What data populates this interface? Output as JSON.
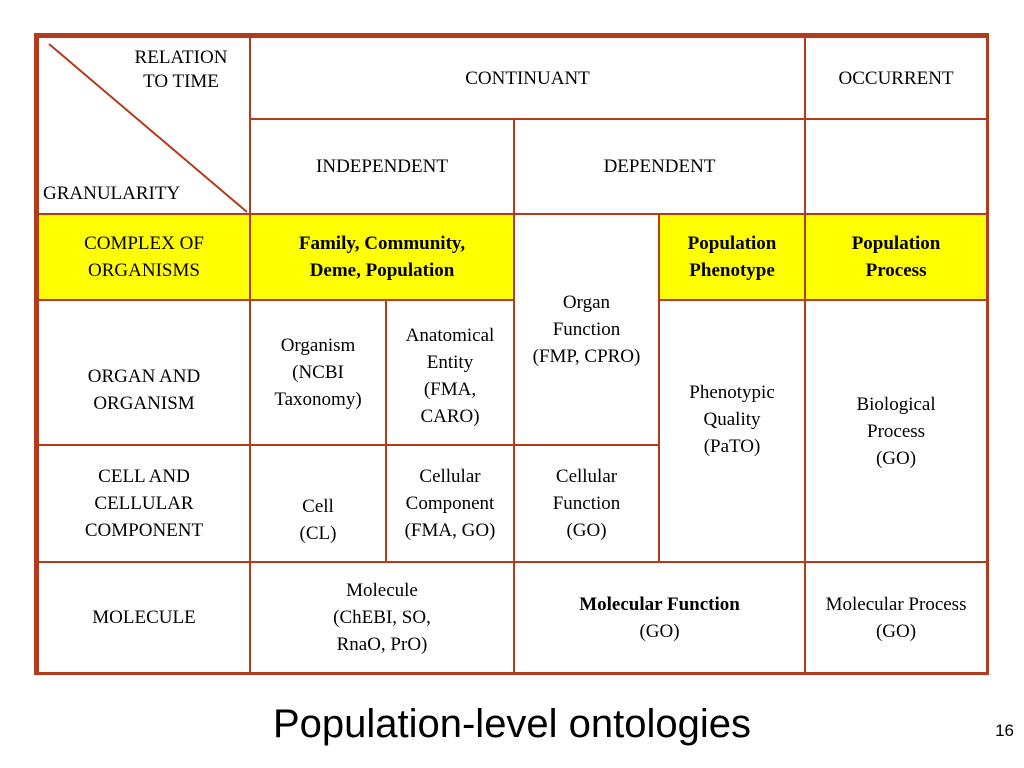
{
  "header": {
    "relation_to_time": "RELATION\nTO TIME",
    "granularity": "GRANULARITY",
    "continuant": "CONTINUANT",
    "occurrent": "OCCURRENT",
    "independent": "INDEPENDENT",
    "dependent": "DEPENDENT"
  },
  "rows": {
    "complex": {
      "label": "COMPLEX OF\nORGANISMS",
      "independent": "Family, Community,\nDeme, Population",
      "phenotype": "Population\nPhenotype",
      "process": "Population\nProcess"
    },
    "organ": {
      "label": "ORGAN AND\nORGANISM",
      "organism": "Organism\n(NCBI\nTaxonomy)",
      "anatomical": "Anatomical\nEntity\n(FMA,\nCARO)"
    },
    "cell": {
      "label": "CELL AND\nCELLULAR\nCOMPONENT",
      "cell": "Cell\n(CL)",
      "component": "Cellular\nComponent\n(FMA, GO)",
      "function": "Cellular\nFunction\n(GO)"
    },
    "molecule": {
      "label": "MOLECULE",
      "molecule": "Molecule\n(ChEBI, SO,\nRnaO, PrO)",
      "function_name": "Molecular Function",
      "function_src": "(GO)",
      "process": "Molecular Process\n(GO)"
    }
  },
  "spans": {
    "organ_function": "Organ\nFunction\n(FMP, CPRO)",
    "phenotypic_quality": "Phenotypic\nQuality\n(PaTO)",
    "biological_process": "Biological\nProcess\n(GO)"
  },
  "slide": {
    "title": "Population-level ontologies",
    "page_number": "16"
  },
  "colors": {
    "border": "#b33a1a",
    "highlight": "#ffff00"
  }
}
